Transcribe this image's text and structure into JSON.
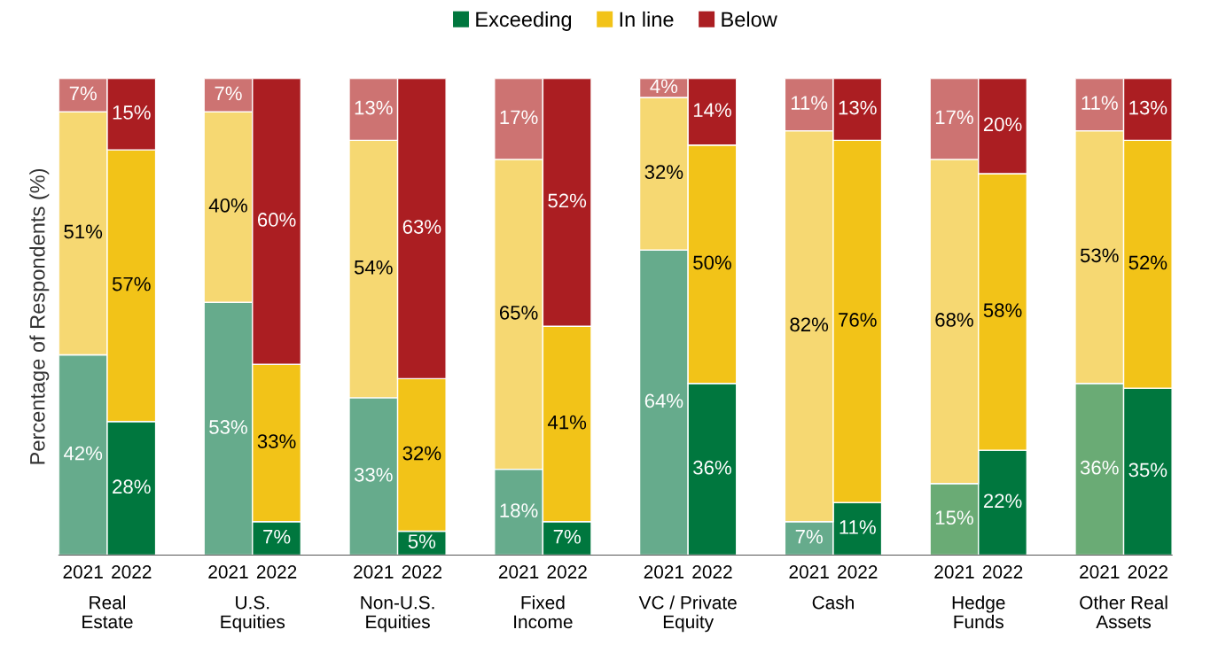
{
  "chart_data": {
    "type": "bar",
    "stacked": true,
    "ylabel": "Percentage of Respondents (%)",
    "categories": [
      "2021",
      "2022",
      null,
      "2021",
      "2022",
      null,
      "2021",
      "2022",
      null,
      "2021",
      "2022",
      null,
      "2021",
      "2022",
      null,
      "2021",
      "2022",
      null,
      "2021",
      "2022",
      null,
      "2021",
      "2022"
    ],
    "annotations": [
      "Real\nEstate",
      "U.S.\nEquities",
      "Non-U.S.\nEquities",
      "Fixed\nIncome",
      "VC / Private\nEquity",
      "Cash",
      "Hedge\nFunds",
      "Other Real\nAssets"
    ],
    "ylim": [
      0,
      100
    ],
    "tick_labels": "x",
    "legend": "top",
    "series": [
      {
        "name": "Exceeding",
        "color": "#00773e",
        "colors": [
          "#66ab8c",
          "#00773e",
          null,
          "#66ab8c",
          "#00773e",
          null,
          "#66ab8c",
          "#00773e",
          null,
          "#66ab8c",
          "#00773e",
          null,
          "#66ab8c",
          "#00773e",
          null,
          "#66ab8c",
          "#00773e",
          null,
          "#6aab75",
          "#00773e",
          null,
          "#6aab75",
          "#00773e"
        ],
        "values": [
          42,
          28,
          null,
          53,
          7,
          null,
          33,
          5,
          null,
          18,
          7,
          null,
          64,
          36,
          null,
          7,
          11,
          null,
          15,
          22,
          null,
          36,
          35
        ],
        "value_labels": [
          "42%",
          "28%",
          null,
          "53%",
          "7%",
          null,
          "33%",
          "5%",
          null,
          "18%",
          "7%",
          null,
          "64%",
          "36%",
          null,
          "7%",
          "11%",
          null,
          "15%",
          "22%",
          null,
          "36%",
          "35%"
        ]
      },
      {
        "name": "In line",
        "color": "#f2c318",
        "colors": [
          "#f6d872",
          "#f2c318",
          null,
          "#f6d872",
          "#f2c318",
          null,
          "#f6d872",
          "#f2c318",
          null,
          "#f6d872",
          "#f2c318",
          null,
          "#f6d872",
          "#f2c318",
          null,
          "#f6d872",
          "#f2c318",
          null,
          "#f6d872",
          "#f2c318",
          null,
          "#f6d872",
          "#f2c318"
        ],
        "values": [
          51,
          57,
          null,
          40,
          33,
          null,
          54,
          32,
          null,
          65,
          41,
          null,
          32,
          50,
          null,
          82,
          76,
          null,
          68,
          58,
          null,
          53,
          52
        ],
        "value_labels": [
          "51%",
          "57%",
          null,
          "40%",
          "33%",
          null,
          "54%",
          "32%",
          null,
          "65%",
          "41%",
          null,
          "32%",
          "50%",
          null,
          "82%",
          "76%",
          null,
          "68%",
          "58%",
          null,
          "53%",
          "52%"
        ]
      },
      {
        "name": "Below",
        "color": "#ab1e22",
        "colors": [
          "#cd7372",
          "#ab1e22",
          null,
          "#cd7372",
          "#ab1e22",
          null,
          "#cd7372",
          "#ab1e22",
          null,
          "#cd7372",
          "#ab1e22",
          null,
          "#cd7372",
          "#ab1e22",
          null,
          "#cd7372",
          "#ab1e22",
          null,
          "#cd7372",
          "#ab1e22",
          null,
          "#cd7372",
          "#ab1e22"
        ],
        "values": [
          7,
          15,
          null,
          7,
          60,
          null,
          13,
          63,
          null,
          17,
          52,
          null,
          4,
          14,
          null,
          11,
          13,
          null,
          17,
          20,
          null,
          11,
          13
        ],
        "value_labels": [
          "7%",
          "15%",
          null,
          "7%",
          "60%",
          null,
          "13%",
          "63%",
          null,
          "17%",
          "52%",
          null,
          "4%",
          "14%",
          null,
          "11%",
          "13%",
          null,
          "17%",
          "20%",
          null,
          "11%",
          "13%"
        ]
      }
    ]
  }
}
